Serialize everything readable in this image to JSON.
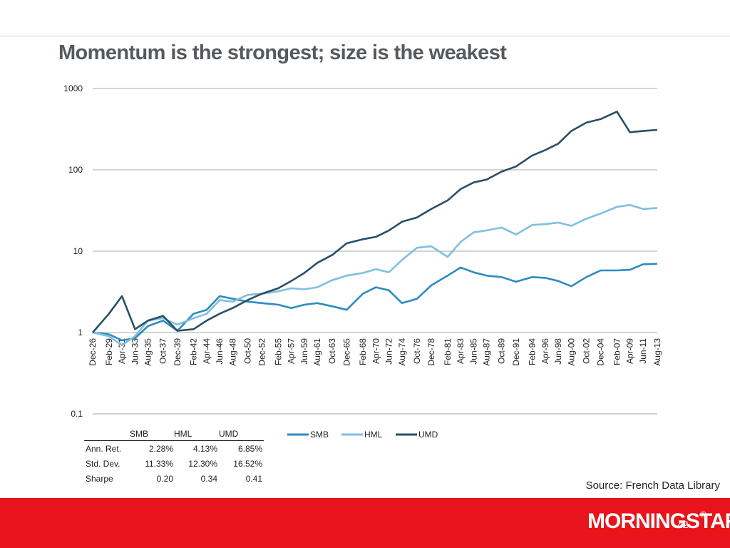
{
  "title": "Momentum is the strongest; size is the weakest",
  "colors": {
    "SMB": "#2e8bc0",
    "HML": "#7fbfe0",
    "UMD": "#2a4f66",
    "footer": "#e8141b"
  },
  "chart_data": {
    "type": "line",
    "yscale": "log",
    "ylim": [
      0.1,
      1000
    ],
    "yticks": [
      "1000",
      "100",
      "10",
      "1",
      "0.1"
    ],
    "ytick_values": [
      1000,
      100,
      10,
      1,
      0.1
    ],
    "grid": true,
    "legend": "top-right",
    "x_labels": [
      "Dec-26",
      "Feb-29",
      "Apr-31",
      "Jun-33",
      "Aug-35",
      "Oct-37",
      "Dec-39",
      "Feb-42",
      "Apr-44",
      "Jun-46",
      "Aug-48",
      "Oct-50",
      "Dec-52",
      "Feb-55",
      "Apr-57",
      "Jun-59",
      "Aug-61",
      "Oct-63",
      "Dec-65",
      "Feb-68",
      "Apr-70",
      "Jun-72",
      "Aug-74",
      "Oct-76",
      "Dec-78",
      "Feb-81",
      "Apr-83",
      "Jun-85",
      "Aug-87",
      "Oct-89",
      "Dec-91",
      "Feb-94",
      "Apr-96",
      "Jun-98",
      "Aug-00",
      "Oct-02",
      "Dec-04",
      "Feb-07",
      "Apr-09",
      "Jun-11",
      "Aug-13"
    ],
    "x": [
      1927.0,
      1929.5,
      1931.5,
      1933.5,
      1935.5,
      1937.8,
      1940.0,
      1942.5,
      1944.5,
      1946.5,
      1948.5,
      1950.8,
      1953.0,
      1955.5,
      1957.5,
      1959.5,
      1961.5,
      1963.8,
      1966.0,
      1968.5,
      1970.5,
      1972.5,
      1974.5,
      1976.8,
      1979.0,
      1981.5,
      1983.5,
      1985.5,
      1987.5,
      1989.8,
      1992.0,
      1994.5,
      1996.5,
      1998.5,
      2000.5,
      2002.8,
      2005.0,
      2007.5,
      2009.5,
      2011.5,
      2013.7
    ],
    "series": [
      {
        "name": "SMB",
        "values": [
          1.0,
          0.95,
          0.8,
          0.85,
          1.2,
          1.4,
          1.05,
          1.7,
          1.9,
          2.8,
          2.6,
          2.4,
          2.3,
          2.2,
          2.0,
          2.2,
          2.3,
          2.1,
          1.9,
          3.0,
          3.6,
          3.3,
          2.3,
          2.6,
          3.8,
          5.0,
          6.3,
          5.5,
          5.0,
          4.8,
          4.2,
          4.8,
          4.7,
          4.3,
          3.7,
          4.8,
          5.8,
          5.8,
          5.9,
          6.9,
          7.0
        ]
      },
      {
        "name": "HML",
        "values": [
          1.0,
          0.9,
          0.7,
          0.9,
          1.4,
          1.5,
          1.25,
          1.5,
          1.7,
          2.5,
          2.4,
          2.9,
          3.0,
          3.2,
          3.5,
          3.4,
          3.6,
          4.4,
          5.0,
          5.4,
          6.0,
          5.5,
          7.8,
          11.0,
          11.5,
          8.5,
          13.0,
          17.0,
          18.0,
          19.5,
          16.0,
          21.0,
          21.5,
          22.5,
          20.5,
          25.0,
          29.0,
          35.0,
          37.0,
          33.0,
          34.0
        ]
      },
      {
        "name": "UMD",
        "values": [
          1.0,
          1.7,
          2.8,
          1.1,
          1.4,
          1.6,
          1.05,
          1.1,
          1.4,
          1.7,
          2.0,
          2.5,
          3.0,
          3.5,
          4.3,
          5.4,
          7.2,
          9.0,
          12.5,
          14.0,
          15.0,
          18.0,
          23.0,
          26.0,
          33.0,
          42.0,
          58.0,
          70.0,
          76.0,
          95.0,
          110.0,
          150.0,
          175.0,
          210.0,
          300.0,
          380.0,
          420.0,
          520.0,
          290.0,
          300.0,
          310.0
        ]
      }
    ]
  },
  "stats_table": {
    "columns": [
      "SMB",
      "HML",
      "UMD"
    ],
    "rows": [
      {
        "label": "Ann. Ret.",
        "values": [
          "2.28%",
          "4.13%",
          "6.85%"
        ]
      },
      {
        "label": "Std. Dev.",
        "values": [
          "11.33%",
          "12.30%",
          "16.52%"
        ]
      },
      {
        "label": "Sharpe",
        "values": [
          "0.20",
          "0.34",
          "0.41"
        ]
      }
    ]
  },
  "source": "Source: French Data Library",
  "footer": {
    "logo": "MORNINGSTAR",
    "registered": "®",
    "page_number": "42"
  }
}
